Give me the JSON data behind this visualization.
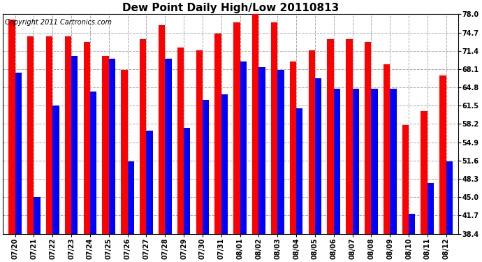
{
  "title": "Dew Point Daily High/Low 20110813",
  "copyright": "Copyright 2011 Cartronics.com",
  "dates": [
    "07/20",
    "07/21",
    "07/22",
    "07/23",
    "07/24",
    "07/25",
    "07/26",
    "07/27",
    "07/28",
    "07/29",
    "07/30",
    "07/31",
    "08/01",
    "08/02",
    "08/03",
    "08/04",
    "08/05",
    "08/06",
    "08/07",
    "08/08",
    "08/09",
    "08/10",
    "08/11",
    "08/12"
  ],
  "highs": [
    77.0,
    74.0,
    74.0,
    74.0,
    73.0,
    70.5,
    68.0,
    73.5,
    76.0,
    72.0,
    71.5,
    74.5,
    76.5,
    79.0,
    76.5,
    69.5,
    71.5,
    73.5,
    73.5,
    73.0,
    69.0,
    58.0,
    60.5,
    67.0
  ],
  "lows": [
    67.5,
    45.0,
    61.5,
    70.5,
    64.0,
    70.0,
    51.5,
    57.0,
    70.0,
    57.5,
    62.5,
    63.5,
    69.5,
    68.5,
    68.0,
    61.0,
    66.5,
    64.5,
    64.5,
    64.5,
    64.5,
    42.0,
    47.5,
    51.5
  ],
  "high_color": "#ff0000",
  "low_color": "#0000ff",
  "bg_color": "#ffffff",
  "grid_color": "#aaaaaa",
  "ylim_min": 38.4,
  "ylim_max": 78.0,
  "ytick_vals": [
    38.4,
    41.7,
    45.0,
    48.3,
    51.6,
    54.9,
    58.2,
    61.5,
    64.8,
    68.1,
    71.4,
    74.7,
    78.0
  ],
  "ytick_labels": [
    "38.4",
    "41.7",
    "45.0",
    "48.3",
    "51.6",
    "54.9",
    "58.2",
    "61.5",
    "64.8",
    "68.1",
    "71.4",
    "74.7",
    "78.0"
  ],
  "title_fontsize": 11,
  "copyright_fontsize": 7,
  "tick_fontsize": 7,
  "bar_width": 0.35,
  "figure_width": 6.9,
  "figure_height": 3.75,
  "dpi": 100
}
